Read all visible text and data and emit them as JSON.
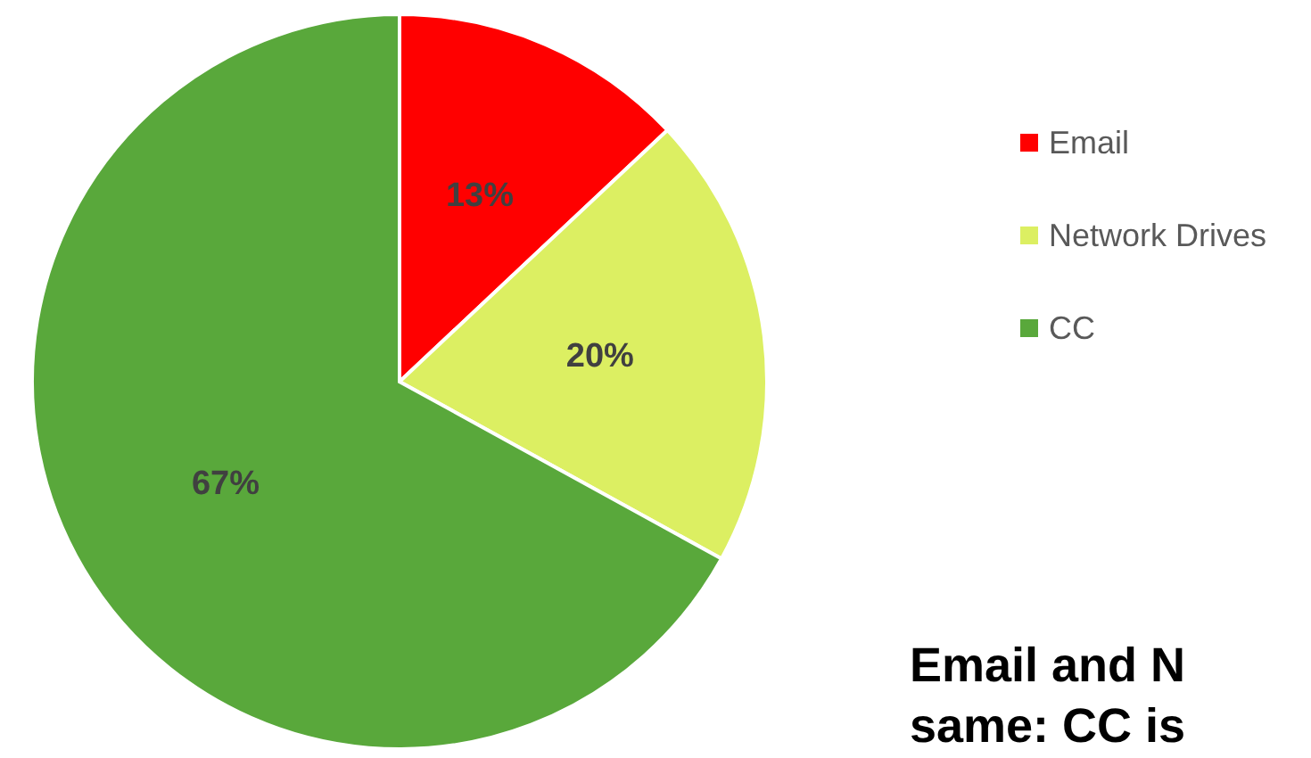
{
  "chart_data": {
    "type": "pie",
    "categories": [
      "Email",
      "Network Drives",
      "CC"
    ],
    "values": [
      13,
      20,
      67
    ],
    "colors": [
      "#ff0000",
      "#dcef62",
      "#59a83b"
    ],
    "value_labels": [
      "13%",
      "20%",
      "67%"
    ],
    "legend": "right",
    "annotations": [
      "Email and N",
      "same: CC is"
    ]
  }
}
